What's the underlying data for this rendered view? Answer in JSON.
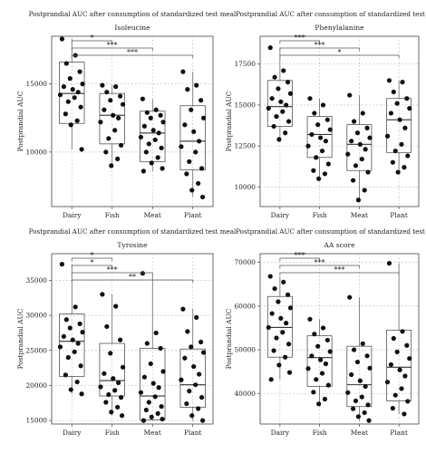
{
  "chart_data": [
    {
      "type": "box",
      "title": "Postprandial AUC after consumption of standardized test meal",
      "subtitle": "Isoleucine",
      "ylabel": "Postprandial AUC",
      "categories": [
        "Dairy",
        "Fish",
        "Meat",
        "Plant"
      ],
      "ylim": [
        6000,
        18500
      ],
      "yticks": [
        10000,
        15000
      ],
      "boxes": [
        {
          "min": 10200,
          "q1": 12100,
          "median": 14300,
          "q3": 16600,
          "max": 18300
        },
        {
          "min": 9000,
          "q1": 10600,
          "median": 12700,
          "q3": 14300,
          "max": 14900
        },
        {
          "min": 8600,
          "q1": 9300,
          "median": 11400,
          "q3": 13000,
          "max": 13900
        },
        {
          "min": 6700,
          "q1": 8700,
          "median": 10800,
          "q3": 13400,
          "max": 15900
        }
      ],
      "points": [
        [
          18300,
          17100,
          16500,
          15900,
          15400,
          15000,
          14800,
          14600,
          14400,
          14200,
          14000,
          13700,
          13300,
          12800,
          12300,
          12000,
          10200
        ],
        [
          14900,
          14800,
          14400,
          14100,
          13800,
          13500,
          13100,
          12700,
          12500,
          12200,
          11600,
          11000,
          10500,
          10000,
          9500,
          9000
        ],
        [
          13900,
          13100,
          12900,
          12700,
          12500,
          12200,
          11900,
          11600,
          11400,
          11100,
          10900,
          10600,
          10300,
          10000,
          9600,
          9200,
          8800,
          8600
        ],
        [
          15900,
          14900,
          14600,
          13800,
          13100,
          12500,
          12000,
          11500,
          10800,
          10400,
          10000,
          9300,
          8800,
          8400,
          7700,
          7200,
          6700
        ]
      ],
      "significance": [
        {
          "from": "Dairy",
          "to": "Fish",
          "label": "*"
        },
        {
          "from": "Dairy",
          "to": "Meat",
          "label": "***"
        },
        {
          "from": "Dairy",
          "to": "Plant",
          "label": "***"
        }
      ]
    },
    {
      "type": "box",
      "title": "Postprandial AUC after consumption of standardized test meal",
      "subtitle": "Phenylalanine",
      "ylabel": "Postprandial AUC",
      "categories": [
        "Dairy",
        "Fish",
        "Meat",
        "Plant"
      ],
      "ylim": [
        8800,
        19200
      ],
      "yticks": [
        10000,
        12500,
        15000,
        17500
      ],
      "boxes": [
        {
          "min": 12900,
          "q1": 13700,
          "median": 14900,
          "q3": 16500,
          "max": 18500
        },
        {
          "min": 10500,
          "q1": 11800,
          "median": 13200,
          "q3": 14300,
          "max": 15400
        },
        {
          "min": 9200,
          "q1": 11000,
          "median": 12600,
          "q3": 13800,
          "max": 15600
        },
        {
          "min": 10900,
          "q1": 12100,
          "median": 14100,
          "q3": 15400,
          "max": 16500
        }
      ],
      "points": [
        [
          18500,
          17100,
          16700,
          16400,
          16000,
          15700,
          15400,
          15200,
          15000,
          14800,
          14600,
          14300,
          14000,
          13700,
          13300,
          12900
        ],
        [
          15400,
          15000,
          14500,
          14100,
          13800,
          13500,
          13200,
          13000,
          12800,
          12500,
          12200,
          11800,
          11400,
          11000,
          10800,
          10500
        ],
        [
          15600,
          14500,
          14000,
          13600,
          13300,
          13000,
          12800,
          12600,
          12300,
          12000,
          11700,
          11300,
          10900,
          10400,
          9800,
          9200
        ],
        [
          16500,
          16400,
          15800,
          15400,
          15100,
          14800,
          14500,
          14100,
          13600,
          13100,
          12600,
          12200,
          11900,
          11500,
          11200,
          10900
        ]
      ],
      "significance": [
        {
          "from": "Dairy",
          "to": "Fish",
          "label": "***"
        },
        {
          "from": "Dairy",
          "to": "Meat",
          "label": "***"
        },
        {
          "from": "Dairy",
          "to": "Plant",
          "label": "*"
        }
      ]
    },
    {
      "type": "box",
      "title": "Postprandial AUC after consumption of standardized test meal",
      "subtitle": "Tyrosine",
      "ylabel": "Postprandial AUC",
      "categories": [
        "Dairy",
        "Fish",
        "Meat",
        "Plant"
      ],
      "ylim": [
        14500,
        38800
      ],
      "yticks": [
        15000,
        20000,
        25000,
        30000,
        35000
      ],
      "boxes": [
        {
          "min": 18800,
          "q1": 21300,
          "median": 26300,
          "q3": 30200,
          "max": 37300
        },
        {
          "min": 15700,
          "q1": 18500,
          "median": 20700,
          "q3": 26000,
          "max": 33000
        },
        {
          "min": 15000,
          "q1": 15100,
          "median": 18500,
          "q3": 25300,
          "max": 36000
        },
        {
          "min": 15000,
          "q1": 16900,
          "median": 20100,
          "q3": 25200,
          "max": 30900
        }
      ],
      "points": [
        [
          37300,
          31200,
          29400,
          28800,
          28200,
          27600,
          27000,
          26500,
          26000,
          25500,
          24800,
          24000,
          22800,
          21500,
          20500,
          19400,
          18800
        ],
        [
          33000,
          31300,
          28400,
          26500,
          24600,
          22600,
          21700,
          21000,
          20400,
          19800,
          19300,
          18700,
          18300,
          17600,
          16900,
          16200,
          15700
        ],
        [
          36000,
          27500,
          26000,
          25300,
          23100,
          22000,
          21200,
          20300,
          19700,
          19000,
          18400,
          17600,
          17000,
          16500,
          16000,
          15500,
          15200,
          15000
        ],
        [
          30900,
          29700,
          27700,
          26200,
          25500,
          24700,
          23900,
          22700,
          21600,
          20800,
          20100,
          19200,
          18300,
          17400,
          16700,
          15700,
          15000
        ]
      ],
      "significance": [
        {
          "from": "Dairy",
          "to": "Fish",
          "label": "*"
        },
        {
          "from": "Dairy",
          "to": "Fish",
          "label": "*"
        },
        {
          "from": "Dairy",
          "to": "Meat",
          "label": "***"
        },
        {
          "from": "Dairy",
          "to": "Plant",
          "label": "**"
        }
      ]
    },
    {
      "type": "box",
      "title": "Postprandial AUC after consumption of standardized test meal",
      "subtitle": "AA score",
      "ylabel": "Postprandial AUC",
      "categories": [
        "Dairy",
        "Fish",
        "Meat",
        "Plant"
      ],
      "ylim": [
        33000,
        72000
      ],
      "yticks": [
        40000,
        50000,
        60000,
        70000
      ],
      "boxes": [
        {
          "min": 43200,
          "q1": 48300,
          "median": 55100,
          "q3": 62200,
          "max": 66800
        },
        {
          "min": 37600,
          "q1": 41600,
          "median": 48200,
          "q3": 53200,
          "max": 57000
        },
        {
          "min": 33800,
          "q1": 37000,
          "median": 42000,
          "q3": 50800,
          "max": 62000
        },
        {
          "min": 35300,
          "q1": 38300,
          "median": 46000,
          "q3": 54500,
          "max": 69800
        }
      ],
      "points": [
        [
          66800,
          65500,
          64000,
          62600,
          61000,
          59600,
          58300,
          57200,
          56100,
          55100,
          54000,
          52700,
          51300,
          49800,
          48300,
          46500,
          44800,
          43200
        ],
        [
          57000,
          55000,
          53600,
          52200,
          50800,
          49600,
          48600,
          47700,
          46800,
          45700,
          44600,
          43200,
          41900,
          40300,
          38700,
          37600
        ],
        [
          62000,
          51400,
          50000,
          48600,
          47200,
          45800,
          44300,
          42900,
          41600,
          40200,
          39200,
          38300,
          37400,
          36500,
          35600,
          34700,
          33800
        ],
        [
          69800,
          54200,
          52600,
          51000,
          49500,
          48000,
          46600,
          45400,
          44000,
          42600,
          41100,
          39600,
          38200,
          36600,
          35300
        ]
      ],
      "significance": [
        {
          "from": "Dairy",
          "to": "Fish",
          "label": "***"
        },
        {
          "from": "Dairy",
          "to": "Meat",
          "label": "***"
        },
        {
          "from": "Dairy",
          "to": "Plant",
          "label": "***"
        }
      ]
    }
  ]
}
